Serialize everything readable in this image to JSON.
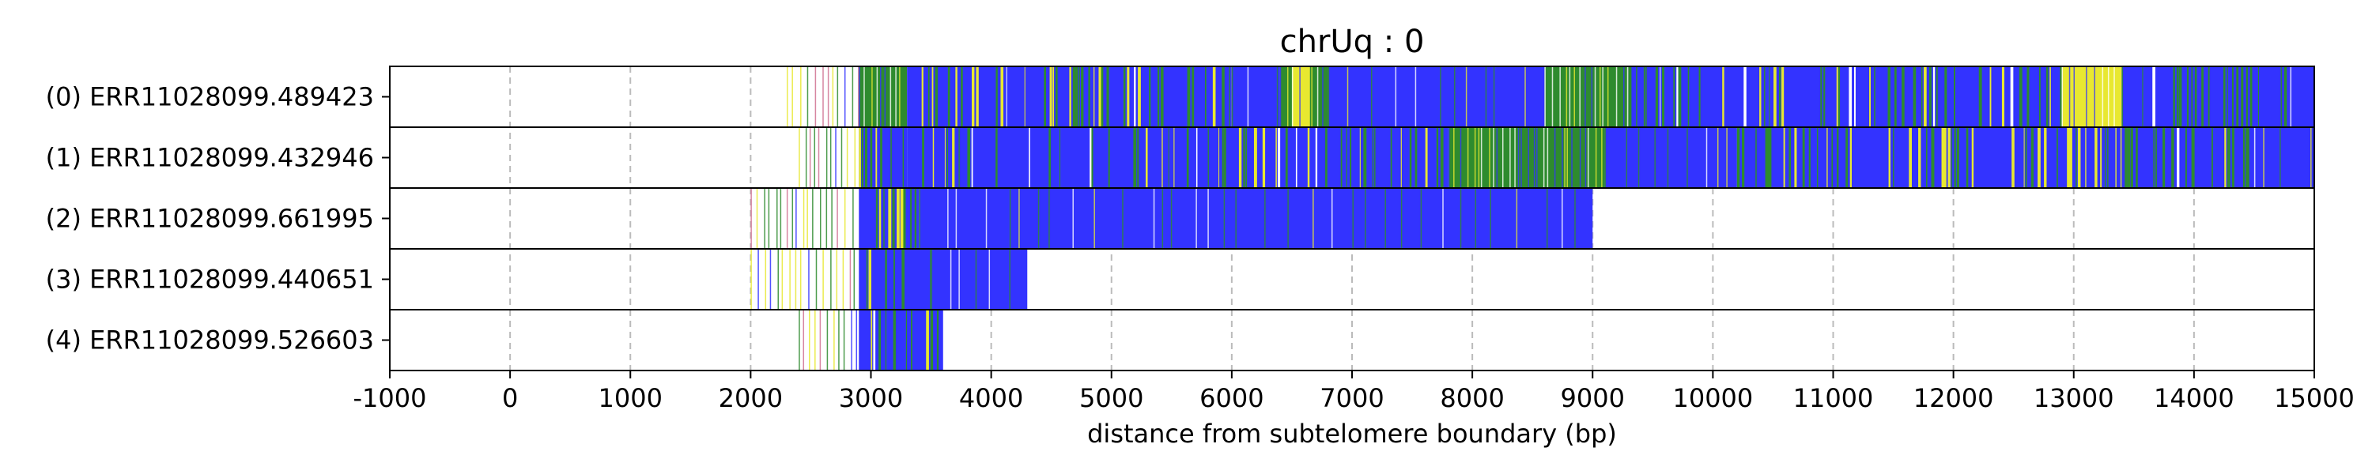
{
  "chart_data": {
    "type": "heatmap",
    "title": "chrUq : 0",
    "xlabel": "distance from subtelomere boundary (bp)",
    "ylabel": "",
    "xlim": [
      -1000,
      15000
    ],
    "xticks": [
      -1000,
      0,
      1000,
      2000,
      3000,
      4000,
      5000,
      6000,
      7000,
      8000,
      9000,
      10000,
      11000,
      12000,
      13000,
      14000,
      15000
    ],
    "tick_labels": [
      "-1000",
      "0",
      "1000",
      "2000",
      "3000",
      "4000",
      "5000",
      "6000",
      "7000",
      "8000",
      "9000",
      "10000",
      "11000",
      "12000",
      "13000",
      "14000",
      "15000"
    ],
    "grid": true,
    "colors": {
      "blue": "#3333ff",
      "green": "#2e8b2e",
      "yellow": "#e8e830",
      "pink": "#d07090",
      "grid": "#bbbbbb"
    },
    "rows": [
      {
        "label": "(0) ERR11028099.489423",
        "start": 2300,
        "end": 15000,
        "dense_start": 2900,
        "segments": [
          {
            "start": 2900,
            "end": 3300,
            "color": "green"
          },
          {
            "start": 3300,
            "end": 5100,
            "color": "mixed"
          },
          {
            "start": 5100,
            "end": 6000,
            "color": "mixed"
          },
          {
            "start": 6000,
            "end": 6400,
            "color": "blue"
          },
          {
            "start": 6400,
            "end": 6800,
            "color": "green"
          },
          {
            "start": 6500,
            "end": 6650,
            "color": "yellow"
          },
          {
            "start": 6800,
            "end": 8600,
            "color": "blue"
          },
          {
            "start": 8600,
            "end": 9300,
            "color": "green"
          },
          {
            "start": 9300,
            "end": 12900,
            "color": "mixed"
          },
          {
            "start": 12900,
            "end": 13400,
            "color": "yellow"
          },
          {
            "start": 13400,
            "end": 14800,
            "color": "mixed"
          },
          {
            "start": 14800,
            "end": 15000,
            "color": "blue"
          }
        ]
      },
      {
        "label": "(1) ERR11028099.432946",
        "start": 2400,
        "end": 15000,
        "dense_start": 2900,
        "segments": [
          {
            "start": 2900,
            "end": 3300,
            "color": "mixed"
          },
          {
            "start": 3300,
            "end": 7800,
            "color": "mixed"
          },
          {
            "start": 7800,
            "end": 9100,
            "color": "green"
          },
          {
            "start": 9100,
            "end": 10200,
            "color": "blue"
          },
          {
            "start": 10200,
            "end": 14500,
            "color": "mixed"
          },
          {
            "start": 14500,
            "end": 15000,
            "color": "blue"
          }
        ]
      },
      {
        "label": "(2) ERR11028099.661995",
        "start": 2000,
        "end": 9000,
        "dense_start": 2900,
        "segments": [
          {
            "start": 2900,
            "end": 3400,
            "color": "mixed"
          },
          {
            "start": 3400,
            "end": 9000,
            "color": "blue"
          }
        ]
      },
      {
        "label": "(3) ERR11028099.440651",
        "start": 2000,
        "end": 4300,
        "dense_start": 2900,
        "segments": [
          {
            "start": 2900,
            "end": 3500,
            "color": "mixed"
          },
          {
            "start": 3500,
            "end": 4300,
            "color": "blue"
          }
        ]
      },
      {
        "label": "(4) ERR11028099.526603",
        "start": 2400,
        "end": 3600,
        "dense_start": 2900,
        "segments": [
          {
            "start": 2900,
            "end": 3600,
            "color": "mixed"
          }
        ]
      }
    ]
  }
}
